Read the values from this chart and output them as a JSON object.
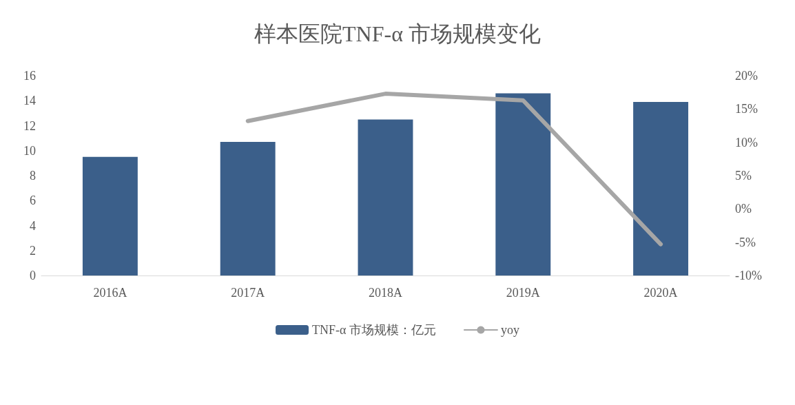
{
  "chart_data": {
    "type": "bar",
    "title": "样本医院TNF-α 市场规模变化",
    "categories": [
      "2016A",
      "2017A",
      "2018A",
      "2019A",
      "2020A"
    ],
    "series": [
      {
        "name": "TNF-α 市场规模：亿元",
        "color": "#3b5f8a",
        "values": [
          9.5,
          10.7,
          12.5,
          14.6,
          13.9
        ]
      },
      {
        "name": "yoy",
        "type": "line",
        "axis": "y2",
        "color": "#a6a6a6",
        "values": [
          null,
          13.2,
          17.3,
          16.3,
          -5.3
        ],
        "marker": "none",
        "line_style": "solid"
      }
    ],
    "ylim": [
      0,
      16
    ],
    "yticks": [
      0,
      2,
      4,
      6,
      8,
      10,
      12,
      14,
      16
    ],
    "y2lim": [
      -10,
      20
    ],
    "y2ticks": [
      {
        "value": -10,
        "label": "-10%"
      },
      {
        "value": -5,
        "label": "-5%"
      },
      {
        "value": 0,
        "label": "0%"
      },
      {
        "value": 5,
        "label": "5%"
      },
      {
        "value": 10,
        "label": "10%"
      },
      {
        "value": 15,
        "label": "15%"
      },
      {
        "value": 20,
        "label": "20%"
      }
    ],
    "grid": false,
    "legend": "bottom"
  }
}
